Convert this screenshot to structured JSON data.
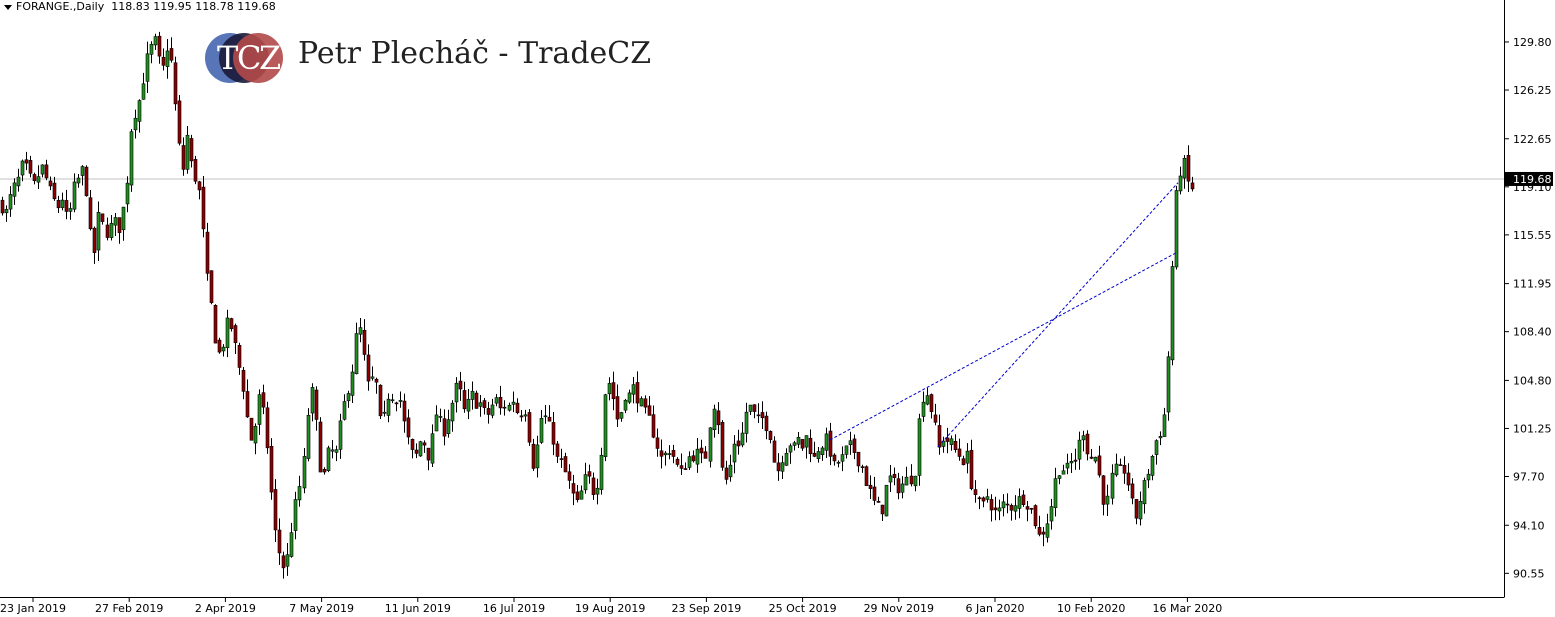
{
  "header": {
    "symbol": "FORANGE.,Daily",
    "ohlc": "118.83 119.95 118.78 119.68"
  },
  "logo": {
    "letters": [
      "T",
      "C",
      "Z"
    ],
    "brand_text": "Petr Plecháč - TradeCZ",
    "colors": {
      "left": "#4f6fb3",
      "middle": "#1b1b3a",
      "right": "#b24949"
    }
  },
  "chart_data": {
    "type": "candlestick",
    "symbol": "FORANGE.",
    "timeframe": "Daily",
    "y_ticks": [
      129.8,
      126.25,
      122.65,
      119.1,
      115.55,
      111.95,
      108.4,
      104.8,
      101.25,
      97.7,
      94.1,
      90.55
    ],
    "ylim": [
      88.8,
      132.9
    ],
    "x_ticks": [
      "23 Jan 2019",
      "27 Feb 2019",
      "2 Apr 2019",
      "7 May 2019",
      "11 Jun 2019",
      "16 Jul 2019",
      "19 Aug 2019",
      "23 Sep 2019",
      "25 Oct 2019",
      "29 Nov 2019",
      "6 Jan 2020",
      "10 Feb 2020",
      "16 Mar 2020"
    ],
    "current_price": 119.68,
    "current_price_label": "119.68",
    "colors": {
      "bull": "#1f8f1f",
      "bear": "#8b0000",
      "wick": "#000000",
      "trendline": "#0000cc",
      "price_line": "#c0c0c0"
    },
    "close_path": [
      [
        0,
        117.9
      ],
      [
        6,
        117.2
      ],
      [
        12,
        118.8
      ],
      [
        18,
        119.6
      ],
      [
        23,
        120.8
      ],
      [
        28,
        120.2
      ],
      [
        33,
        119.0
      ],
      [
        38,
        119.9
      ],
      [
        43,
        120.6
      ],
      [
        48,
        119.2
      ],
      [
        53,
        118.2
      ],
      [
        58,
        117.6
      ],
      [
        63,
        118.4
      ],
      [
        68,
        116.1
      ],
      [
        73,
        118.8
      ],
      [
        78,
        119.6
      ],
      [
        83,
        120.4
      ],
      [
        87,
        118.6
      ],
      [
        90,
        115.9
      ],
      [
        93,
        113.2
      ],
      [
        98,
        116.9
      ],
      [
        103,
        116.2
      ],
      [
        108,
        115.6
      ],
      [
        113,
        116.7
      ],
      [
        118,
        115.9
      ],
      [
        123,
        117.6
      ],
      [
        127,
        119.9
      ],
      [
        130,
        123.2
      ],
      [
        134,
        124.5
      ],
      [
        138,
        125.2
      ],
      [
        142,
        126.8
      ],
      [
        146,
        128.4
      ],
      [
        150,
        129.2
      ],
      [
        154,
        130.1
      ],
      [
        158,
        128.6
      ],
      [
        162,
        127.4
      ],
      [
        166,
        129.6
      ],
      [
        170,
        128.8
      ],
      [
        174,
        126.5
      ],
      [
        176,
        123.2
      ],
      [
        180,
        121.6
      ],
      [
        183,
        120.4
      ],
      [
        186,
        123.4
      ],
      [
        190,
        121.0
      ],
      [
        194,
        120.0
      ],
      [
        198,
        119.2
      ],
      [
        202,
        117.2
      ],
      [
        205,
        112.6
      ],
      [
        209,
        111.9
      ],
      [
        213,
        108.8
      ],
      [
        217,
        107.2
      ],
      [
        221,
        106.4
      ],
      [
        225,
        108.6
      ],
      [
        229,
        109.2
      ],
      [
        233,
        108.3
      ],
      [
        237,
        106.4
      ],
      [
        241,
        105.2
      ],
      [
        245,
        103.6
      ],
      [
        249,
        100.8
      ],
      [
        253,
        100.2
      ],
      [
        257,
        102.5
      ],
      [
        261,
        104.2
      ],
      [
        264,
        101.8
      ],
      [
        268,
        99.6
      ],
      [
        271,
        96.8
      ],
      [
        274,
        94.0
      ],
      [
        278,
        92.6
      ],
      [
        282,
        91.2
      ],
      [
        286,
        90.9
      ],
      [
        290,
        93.2
      ],
      [
        294,
        95.0
      ],
      [
        298,
        96.6
      ],
      [
        302,
        97.5
      ],
      [
        306,
        101.0
      ],
      [
        310,
        104.5
      ],
      [
        314,
        102.9
      ],
      [
        318,
        99.4
      ],
      [
        322,
        97.2
      ],
      [
        326,
        98.8
      ],
      [
        330,
        100.2
      ],
      [
        334,
        98.6
      ],
      [
        338,
        100.6
      ],
      [
        342,
        102.4
      ],
      [
        346,
        103.9
      ],
      [
        350,
        104.8
      ],
      [
        354,
        106.8
      ],
      [
        358,
        109.4
      ],
      [
        362,
        107.4
      ],
      [
        366,
        105.2
      ],
      [
        370,
        103.5
      ],
      [
        374,
        106.4
      ],
      [
        378,
        102.2
      ],
      [
        382,
        101.2
      ],
      [
        386,
        102.9
      ],
      [
        390,
        104.6
      ],
      [
        394,
        102.8
      ],
      [
        398,
        104.3
      ],
      [
        402,
        102.4
      ],
      [
        406,
        100.8
      ],
      [
        410,
        99.9
      ],
      [
        414,
        98.9
      ],
      [
        418,
        99.6
      ],
      [
        422,
        100.9
      ],
      [
        426,
        99.5
      ],
      [
        430,
        99.1
      ],
      [
        434,
        101.7
      ],
      [
        438,
        102.9
      ],
      [
        442,
        100.6
      ],
      [
        446,
        101.6
      ],
      [
        450,
        102.6
      ],
      [
        454,
        103.6
      ],
      [
        458,
        104.7
      ],
      [
        462,
        103.2
      ],
      [
        466,
        102.0
      ],
      [
        470,
        103.8
      ],
      [
        474,
        103.6
      ],
      [
        478,
        102.9
      ],
      [
        482,
        103.2
      ],
      [
        486,
        101.9
      ],
      [
        490,
        102.6
      ],
      [
        494,
        103.2
      ],
      [
        498,
        103.4
      ],
      [
        502,
        102.2
      ],
      [
        506,
        103.4
      ],
      [
        510,
        102.6
      ],
      [
        514,
        103.8
      ],
      [
        518,
        101.8
      ],
      [
        522,
        102.8
      ],
      [
        526,
        102.6
      ],
      [
        530,
        99.6
      ],
      [
        534,
        98.2
      ],
      [
        538,
        100.8
      ],
      [
        542,
        102.6
      ],
      [
        546,
        101.8
      ],
      [
        550,
        101.1
      ],
      [
        554,
        100.2
      ],
      [
        558,
        98.4
      ],
      [
        562,
        98.8
      ],
      [
        566,
        97.6
      ],
      [
        570,
        97.0
      ],
      [
        574,
        96.0
      ],
      [
        578,
        95.5
      ],
      [
        582,
        96.9
      ],
      [
        586,
        97.7
      ],
      [
        590,
        97.4
      ],
      [
        594,
        96.4
      ],
      [
        598,
        97.6
      ],
      [
        602,
        100.4
      ],
      [
        606,
        105.1
      ],
      [
        610,
        104.5
      ],
      [
        614,
        103.2
      ],
      [
        618,
        101.6
      ],
      [
        622,
        102.8
      ],
      [
        626,
        104.1
      ],
      [
        630,
        103.6
      ],
      [
        634,
        104.4
      ],
      [
        638,
        103.4
      ],
      [
        642,
        102.9
      ],
      [
        646,
        102.2
      ],
      [
        650,
        101.8
      ],
      [
        654,
        100.8
      ],
      [
        658,
        99.8
      ],
      [
        662,
        98.9
      ],
      [
        666,
        99.4
      ],
      [
        670,
        99.8
      ],
      [
        674,
        99.1
      ],
      [
        678,
        98.3
      ],
      [
        682,
        97.9
      ],
      [
        686,
        98.7
      ],
      [
        690,
        99.2
      ],
      [
        694,
        99.3
      ],
      [
        698,
        99.4
      ],
      [
        702,
        99.0
      ],
      [
        706,
        99.3
      ],
      [
        710,
        102.0
      ],
      [
        714,
        103.2
      ],
      [
        718,
        101.6
      ],
      [
        722,
        97.8
      ],
      [
        726,
        97.4
      ],
      [
        730,
        98.6
      ],
      [
        734,
        100.4
      ],
      [
        738,
        100.2
      ],
      [
        742,
        100.9
      ],
      [
        746,
        102.6
      ],
      [
        750,
        102.8
      ],
      [
        754,
        102.2
      ],
      [
        758,
        101.8
      ],
      [
        762,
        102.0
      ],
      [
        766,
        101.5
      ],
      [
        770,
        100.8
      ],
      [
        774,
        98.8
      ],
      [
        778,
        98.2
      ],
      [
        782,
        99.2
      ],
      [
        786,
        99.8
      ],
      [
        790,
        100.2
      ],
      [
        794,
        99.8
      ],
      [
        798,
        100.4
      ],
      [
        802,
        99.9
      ],
      [
        806,
        100.6
      ],
      [
        810,
        99.8
      ],
      [
        814,
        99.0
      ],
      [
        818,
        99.8
      ],
      [
        822,
        100.1
      ],
      [
        826,
        100.4
      ],
      [
        830,
        99.6
      ],
      [
        834,
        98.4
      ],
      [
        838,
        98.8
      ],
      [
        842,
        99.0
      ],
      [
        846,
        99.6
      ],
      [
        850,
        99.9
      ],
      [
        854,
        99.6
      ],
      [
        858,
        99.0
      ],
      [
        862,
        98.5
      ],
      [
        866,
        97.4
      ],
      [
        870,
        96.6
      ],
      [
        874,
        95.8
      ],
      [
        878,
        95.4
      ],
      [
        882,
        95.2
      ],
      [
        886,
        96.8
      ],
      [
        890,
        97.6
      ],
      [
        894,
        97.2
      ],
      [
        898,
        96.9
      ],
      [
        902,
        97.1
      ],
      [
        906,
        97.4
      ],
      [
        910,
        97.6
      ],
      [
        914,
        97.7
      ],
      [
        918,
        101.5
      ],
      [
        922,
        103.6
      ],
      [
        926,
        104.0
      ],
      [
        930,
        102.9
      ],
      [
        934,
        101.6
      ],
      [
        938,
        99.6
      ],
      [
        942,
        100.6
      ],
      [
        946,
        100.4
      ],
      [
        950,
        100.2
      ],
      [
        954,
        99.7
      ],
      [
        958,
        99.4
      ],
      [
        962,
        98.8
      ],
      [
        966,
        99.6
      ],
      [
        970,
        97.4
      ],
      [
        974,
        96.6
      ],
      [
        978,
        95.7
      ],
      [
        982,
        95.3
      ],
      [
        986,
        96.4
      ],
      [
        990,
        95.8
      ],
      [
        994,
        95.1
      ],
      [
        998,
        95.0
      ],
      [
        1002,
        95.6
      ],
      [
        1006,
        95.6
      ],
      [
        1010,
        95.4
      ],
      [
        1014,
        95.8
      ],
      [
        1018,
        95.9
      ],
      [
        1022,
        96.2
      ],
      [
        1026,
        95.9
      ],
      [
        1030,
        95.4
      ],
      [
        1034,
        94.8
      ],
      [
        1038,
        93.2
      ],
      [
        1042,
        93.5
      ],
      [
        1046,
        94.2
      ],
      [
        1050,
        95.0
      ],
      [
        1054,
        97.0
      ],
      [
        1058,
        98.2
      ],
      [
        1062,
        98.4
      ],
      [
        1066,
        98.0
      ],
      [
        1070,
        98.7
      ],
      [
        1074,
        98.8
      ],
      [
        1078,
        99.4
      ],
      [
        1082,
        101.6
      ],
      [
        1086,
        100.2
      ],
      [
        1090,
        98.8
      ],
      [
        1094,
        99.6
      ],
      [
        1098,
        98.4
      ],
      [
        1102,
        96.6
      ],
      [
        1106,
        95.2
      ],
      [
        1110,
        97.1
      ],
      [
        1114,
        98.4
      ],
      [
        1118,
        97.7
      ],
      [
        1122,
        98.6
      ],
      [
        1126,
        97.6
      ],
      [
        1130,
        96.6
      ],
      [
        1134,
        94.2
      ],
      [
        1138,
        95.6
      ],
      [
        1142,
        96.6
      ],
      [
        1146,
        97.6
      ],
      [
        1150,
        98.8
      ],
      [
        1154,
        99.7
      ],
      [
        1158,
        101.2
      ],
      [
        1162,
        100.8
      ],
      [
        1166,
        104.0
      ],
      [
        1170,
        109.8
      ],
      [
        1174,
        117.3
      ],
      [
        1178,
        119.6
      ],
      [
        1182,
        121.1
      ],
      [
        1186,
        120.3
      ],
      [
        1190,
        118.4
      ],
      [
        1194,
        119.7
      ]
    ],
    "trendlines": [
      {
        "from": [
          830,
          100.4
        ],
        "to": [
          1178,
          114.3
        ]
      },
      {
        "from": [
          938,
          99.9
        ],
        "to": [
          1178,
          119.4
        ]
      }
    ]
  }
}
